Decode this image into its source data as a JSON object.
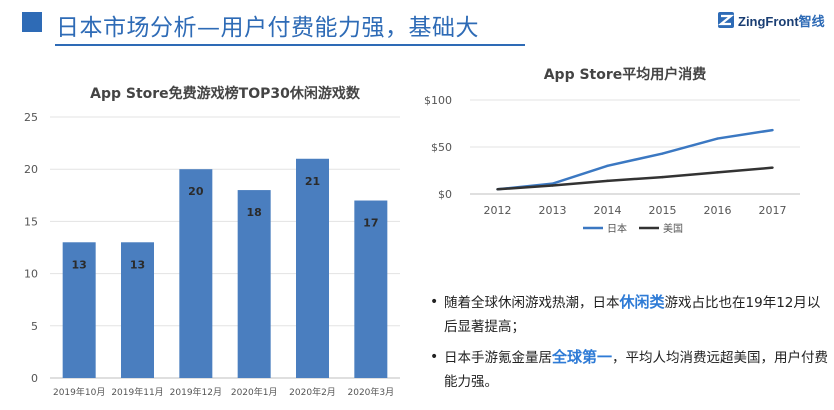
{
  "header": {
    "title": "日本市场分析—用户付费能力强，基础大",
    "logo": {
      "name": "ZingFront",
      "suffix": "智线"
    }
  },
  "colors": {
    "accent": "#2e6bb6",
    "bar": "#4a7ebf",
    "japan_line": "#3b78c2",
    "usa_line": "#333333",
    "highlight": "#2e7bd6"
  },
  "chart_data": [
    {
      "type": "bar",
      "title": "App Store免费游戏榜TOP30休闲游戏数",
      "categories": [
        "2019年10月",
        "2019年11月",
        "2019年12月",
        "2020年1月",
        "2020年2月",
        "2020年3月"
      ],
      "values": [
        13,
        13,
        20,
        18,
        21,
        17
      ],
      "ylim": [
        0,
        25
      ],
      "yticks": [
        0,
        5,
        10,
        15,
        20,
        25
      ],
      "ytick_labels": [
        "0",
        "5",
        "10",
        "15",
        "20",
        "25"
      ],
      "data_labels": [
        "13",
        "13",
        "20",
        "18",
        "21",
        "17"
      ],
      "grid": true
    },
    {
      "type": "line",
      "title": "App Store平均用户消费",
      "x": [
        "2012",
        "2013",
        "2014",
        "2015",
        "2016",
        "2017"
      ],
      "series": [
        {
          "name": "日本",
          "values": [
            5,
            11,
            30,
            43,
            59,
            68
          ]
        },
        {
          "name": "美国",
          "values": [
            5,
            9,
            14,
            18,
            23,
            28
          ]
        }
      ],
      "ylim": [
        0,
        100
      ],
      "yticks": [
        0,
        50,
        100
      ],
      "ytick_labels": [
        "$0",
        "$50",
        "$100"
      ],
      "grid": true,
      "legend": "bottom"
    }
  ],
  "bullets": [
    {
      "before": "随着全球休闲游戏热潮，日本",
      "highlight": "休闲类",
      "after": "游戏占比也在19年12月以后显著提高；"
    },
    {
      "before": "日本手游氪金量居",
      "highlight": "全球第一",
      "after": "，平均人均消费远超美国，用户付费能力强。"
    }
  ]
}
